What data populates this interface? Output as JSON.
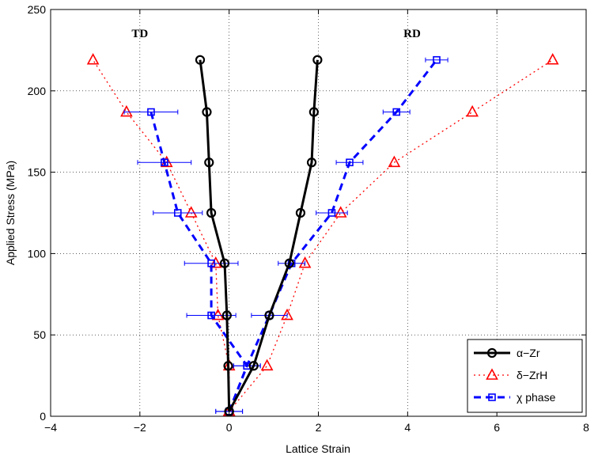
{
  "chart_data": {
    "type": "line",
    "title": "",
    "xlabel": "Lattice Strain",
    "ylabel": "Applied Stress (MPa)",
    "xlim": [
      -4,
      8
    ],
    "ylim": [
      0,
      250
    ],
    "xticks": [
      -4,
      -2,
      0,
      2,
      4,
      6,
      8
    ],
    "yticks": [
      0,
      50,
      100,
      150,
      200,
      250
    ],
    "grid": "dotted",
    "legend_position": "bottom-right",
    "annotations": [
      {
        "text": "TD",
        "x": -2.0,
        "y": 233
      },
      {
        "text": "RD",
        "x": 4.1,
        "y": 233
      }
    ],
    "series": [
      {
        "name": "α−Zr",
        "color": "#000000",
        "line": "solid",
        "marker": "circle",
        "branches": [
          {
            "x": [
              0.0,
              -0.02,
              -0.05,
              -0.1,
              -0.4,
              -0.45,
              -0.5,
              -0.65
            ],
            "y": [
              3,
              31,
              62,
              94,
              125,
              156,
              187,
              219
            ]
          },
          {
            "x": [
              0.0,
              0.55,
              0.9,
              1.35,
              1.6,
              1.85,
              1.9,
              1.98
            ],
            "y": [
              3,
              31,
              62,
              94,
              125,
              156,
              187,
              219
            ]
          }
        ]
      },
      {
        "name": "δ−ZrH",
        "color": "#ff0000",
        "line": "dotted",
        "marker": "triangle",
        "branches": [
          {
            "x": [
              0.0,
              0.0,
              -0.25,
              -0.3,
              -0.85,
              -1.4,
              -2.3,
              -3.05
            ],
            "y": [
              3,
              31,
              62,
              94,
              125,
              156,
              187,
              219
            ]
          },
          {
            "x": [
              0.0,
              0.85,
              1.3,
              1.7,
              2.5,
              3.7,
              5.45,
              7.25
            ],
            "y": [
              3,
              31,
              62,
              94,
              125,
              156,
              187,
              219
            ]
          }
        ]
      },
      {
        "name": "χ phase",
        "color": "#0000ff",
        "line": "dashed",
        "marker": "square",
        "branches": [
          {
            "x": [
              0.0,
              0.4,
              -0.4,
              -0.4,
              -1.15,
              -1.45,
              -1.75
            ],
            "y": [
              3,
              31,
              62,
              94,
              125,
              156,
              187
            ],
            "err": [
              0.3,
              0.3,
              0.55,
              0.6,
              0.55,
              0.6,
              0.6
            ]
          },
          {
            "x": [
              0.0,
              0.4,
              0.9,
              1.4,
              2.3,
              2.7,
              3.75,
              4.65
            ],
            "y": [
              3,
              31,
              62,
              94,
              125,
              156,
              187,
              219
            ],
            "err": [
              0.3,
              0.3,
              0.4,
              0.3,
              0.35,
              0.3,
              0.3,
              0.25
            ]
          }
        ]
      }
    ]
  }
}
